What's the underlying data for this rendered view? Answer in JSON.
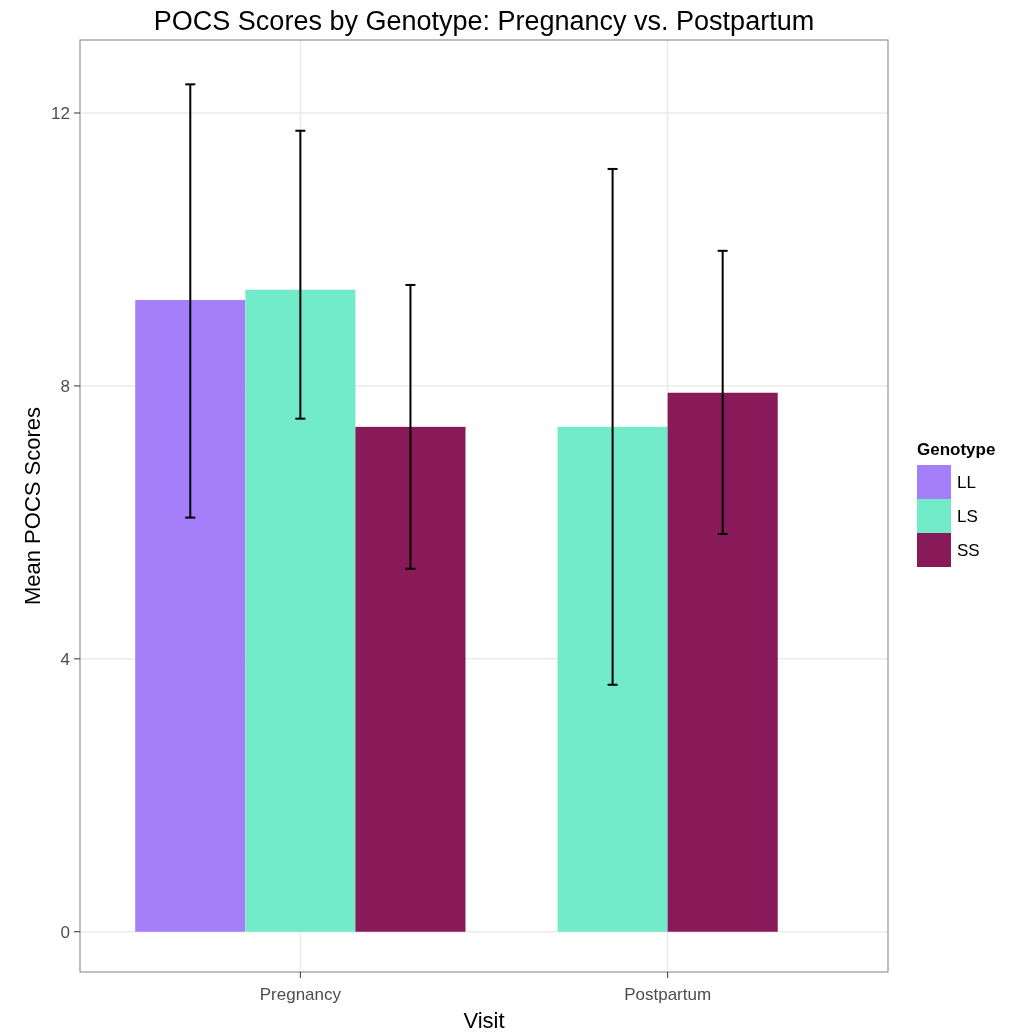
{
  "chart_data": {
    "type": "bar",
    "title": "POCS Scores by Genotype: Pregnancy vs. Postpartum",
    "xlabel": "Visit",
    "ylabel": "Mean POCS Scores",
    "legend_title": "Genotype",
    "categories": [
      "Pregnancy",
      "Postpartum"
    ],
    "series": [
      {
        "name": "LL",
        "color": "#a57ffa",
        "values": [
          9.26,
          null
        ],
        "errors": [
          [
            6.07,
            12.42
          ],
          null
        ]
      },
      {
        "name": "LS",
        "color": "#72ebc8",
        "values": [
          9.41,
          7.4
        ],
        "errors": [
          [
            7.52,
            11.74
          ],
          [
            3.62,
            11.18
          ]
        ]
      },
      {
        "name": "SS",
        "color": "#891a59",
        "values": [
          7.4,
          7.9
        ],
        "errors": [
          [
            5.32,
            9.48
          ],
          [
            5.83,
            9.98
          ]
        ]
      }
    ],
    "ylim": [
      -0.59,
      13.07
    ],
    "yticks": [
      0,
      4,
      8,
      12
    ],
    "grid": true,
    "legend": "right"
  }
}
